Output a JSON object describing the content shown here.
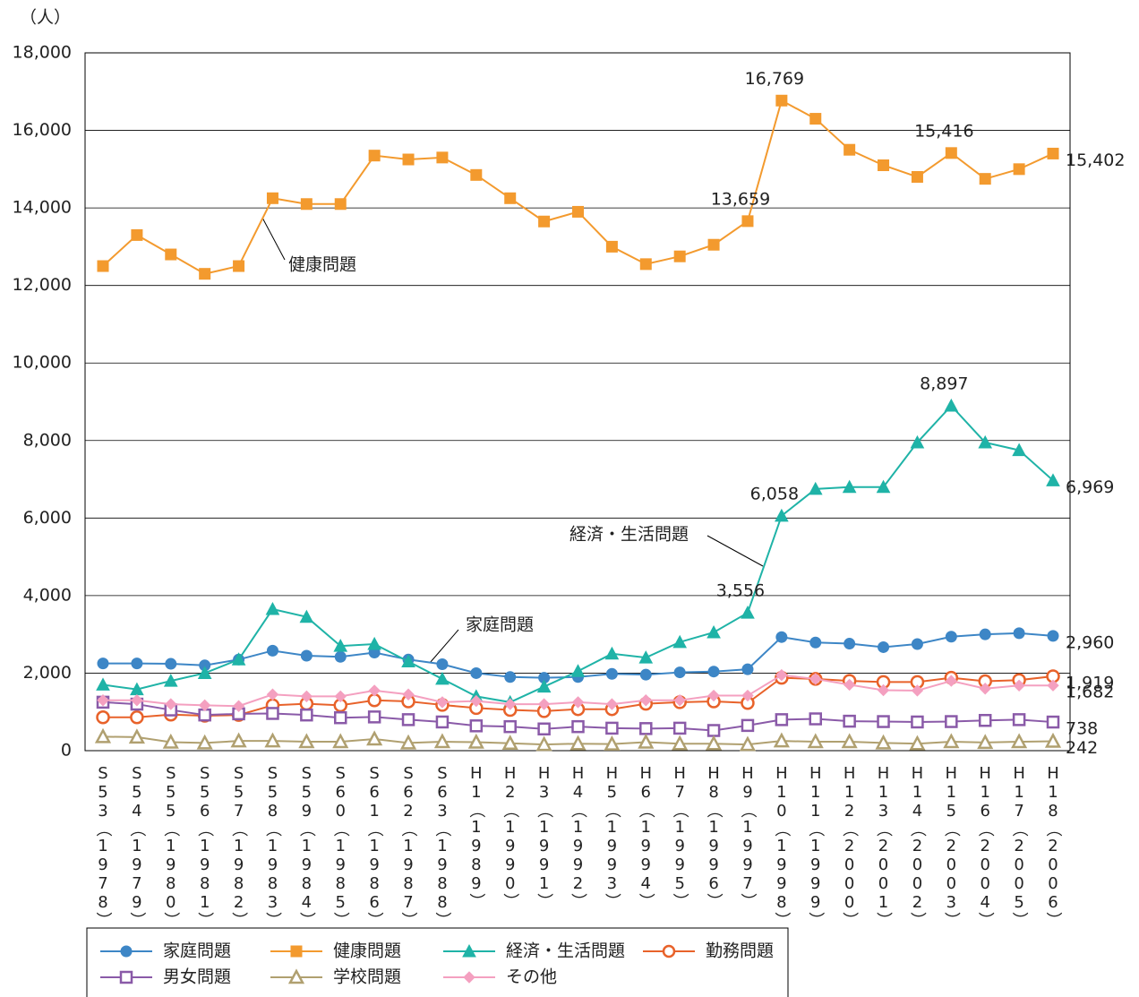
{
  "chart_data": {
    "type": "line",
    "ylabel": "（人）",
    "categories": [
      "S53（1978）",
      "S54（1979）",
      "S55（1980）",
      "S56（1981）",
      "S57（1982）",
      "S58（1983）",
      "S59（1984）",
      "S60（1985）",
      "S61（1986）",
      "S62（1987）",
      "S63（1988）",
      "H1（1989）",
      "H2（1990）",
      "H3（1991）",
      "H4（1992）",
      "H5（1993）",
      "H6（1994）",
      "H7（1995）",
      "H8（1996）",
      "H9（1997）",
      "H10（1998）",
      "H11（1999）",
      "H12（2000）",
      "H13（2001）",
      "H14（2002）",
      "H15（2003）",
      "H16（2004）",
      "H17（2005）",
      "H18（2006）"
    ],
    "ylim": [
      0,
      18000
    ],
    "yticks": [
      0,
      {
        "value": 2000,
        "label": "2,000"
      },
      {
        "value": 4000,
        "label": "4,000"
      },
      {
        "value": 6000,
        "label": "6,000"
      },
      {
        "value": 8000,
        "label": "8,000"
      },
      {
        "value": 10000,
        "label": "10,000"
      },
      {
        "value": 12000,
        "label": "12,000"
      },
      {
        "value": 14000,
        "label": "14,000"
      },
      {
        "value": 16000,
        "label": "16,000"
      },
      {
        "value": 18000,
        "label": "18,000"
      }
    ],
    "grid": true,
    "legend": "bottom",
    "annotations": [
      "健康問題",
      "経済・生活問題",
      "家庭問題"
    ],
    "series": [
      {
        "name": "家庭問題",
        "color": "#3d86c6",
        "marker": "circle",
        "filled": true,
        "values": [
          2250,
          2250,
          2240,
          2200,
          2350,
          2580,
          2450,
          2420,
          2530,
          2350,
          2230,
          2000,
          1900,
          1880,
          1900,
          1980,
          1960,
          2020,
          2040,
          2100,
          2930,
          2790,
          2760,
          2670,
          2750,
          2940,
          3000,
          3030,
          2960
        ],
        "value_labels": [
          null,
          null,
          null,
          null,
          null,
          null,
          null,
          null,
          null,
          null,
          null,
          null,
          null,
          null,
          null,
          null,
          null,
          null,
          null,
          null,
          null,
          null,
          null,
          null,
          null,
          null,
          null,
          null,
          "2,960"
        ]
      },
      {
        "name": "健康問題",
        "color": "#f39a2e",
        "marker": "square",
        "filled": true,
        "values": [
          12500,
          13300,
          12800,
          12300,
          12500,
          14250,
          14100,
          14100,
          15350,
          15250,
          15300,
          14850,
          14250,
          13650,
          13900,
          13000,
          12550,
          12750,
          13050,
          13659,
          16769,
          16300,
          15500,
          15100,
          14800,
          15416,
          14750,
          15000,
          15402
        ],
        "value_labels": [
          null,
          null,
          null,
          null,
          null,
          null,
          null,
          null,
          null,
          null,
          null,
          null,
          null,
          null,
          null,
          null,
          null,
          null,
          null,
          "13,659",
          "16,769",
          null,
          null,
          null,
          null,
          "15,416",
          null,
          null,
          "15,402"
        ]
      },
      {
        "name": "経済・生活問題",
        "color": "#1fb3a7",
        "marker": "triangle",
        "filled": true,
        "values": [
          1700,
          1580,
          1800,
          2000,
          2350,
          3650,
          3450,
          2700,
          2750,
          2300,
          1850,
          1400,
          1250,
          1650,
          2050,
          2500,
          2400,
          2800,
          3050,
          3556,
          6058,
          6750,
          6800,
          6800,
          7950,
          8897,
          7950,
          7750,
          6969
        ],
        "value_labels": [
          null,
          null,
          null,
          null,
          null,
          null,
          null,
          null,
          null,
          null,
          null,
          null,
          null,
          null,
          null,
          null,
          null,
          null,
          null,
          "3,556",
          "6,058",
          null,
          null,
          null,
          null,
          "8,897",
          null,
          null,
          "6,969"
        ]
      },
      {
        "name": "勤務問題",
        "color": "#e8622a",
        "marker": "circle",
        "filled": false,
        "values": [
          860,
          860,
          930,
          900,
          920,
          1170,
          1210,
          1170,
          1300,
          1270,
          1180,
          1100,
          1050,
          1020,
          1070,
          1070,
          1210,
          1250,
          1270,
          1230,
          1880,
          1850,
          1800,
          1770,
          1770,
          1880,
          1790,
          1820,
          1919
        ],
        "value_labels": [
          null,
          null,
          null,
          null,
          null,
          null,
          null,
          null,
          null,
          null,
          null,
          null,
          null,
          null,
          null,
          null,
          null,
          null,
          null,
          null,
          null,
          null,
          null,
          null,
          null,
          null,
          null,
          null,
          "1,919"
        ]
      },
      {
        "name": "男女問題",
        "color": "#8a5aa8",
        "marker": "square",
        "filled": false,
        "values": [
          1250,
          1200,
          1050,
          920,
          950,
          960,
          920,
          850,
          870,
          800,
          740,
          640,
          620,
          560,
          620,
          580,
          570,
          580,
          520,
          650,
          800,
          820,
          760,
          750,
          740,
          750,
          780,
          800,
          738
        ],
        "value_labels": [
          null,
          null,
          null,
          null,
          null,
          null,
          null,
          null,
          null,
          null,
          null,
          null,
          null,
          null,
          null,
          null,
          null,
          null,
          null,
          null,
          null,
          null,
          null,
          null,
          null,
          null,
          null,
          null,
          "738"
        ]
      },
      {
        "name": "学校問題",
        "color": "#b0a070",
        "marker": "triangle",
        "filled": false,
        "values": [
          360,
          350,
          220,
          200,
          250,
          250,
          230,
          230,
          300,
          200,
          230,
          220,
          190,
          160,
          180,
          170,
          220,
          180,
          180,
          160,
          250,
          230,
          230,
          200,
          180,
          230,
          210,
          230,
          242
        ],
        "value_labels": [
          null,
          null,
          null,
          null,
          null,
          null,
          null,
          null,
          null,
          null,
          null,
          null,
          null,
          null,
          null,
          null,
          null,
          null,
          null,
          null,
          null,
          null,
          null,
          null,
          null,
          null,
          null,
          null,
          "242"
        ]
      },
      {
        "name": "その他",
        "color": "#f4a0c0",
        "marker": "diamond",
        "filled": true,
        "values": [
          1300,
          1300,
          1200,
          1170,
          1150,
          1450,
          1400,
          1400,
          1550,
          1450,
          1250,
          1280,
          1200,
          1200,
          1250,
          1200,
          1300,
          1300,
          1420,
          1420,
          1950,
          1850,
          1700,
          1560,
          1550,
          1800,
          1600,
          1680,
          1682
        ],
        "value_labels": [
          null,
          null,
          null,
          null,
          null,
          null,
          null,
          null,
          null,
          null,
          null,
          null,
          null,
          null,
          null,
          null,
          null,
          null,
          null,
          null,
          null,
          null,
          null,
          null,
          null,
          null,
          null,
          null,
          "1,682"
        ]
      }
    ]
  }
}
